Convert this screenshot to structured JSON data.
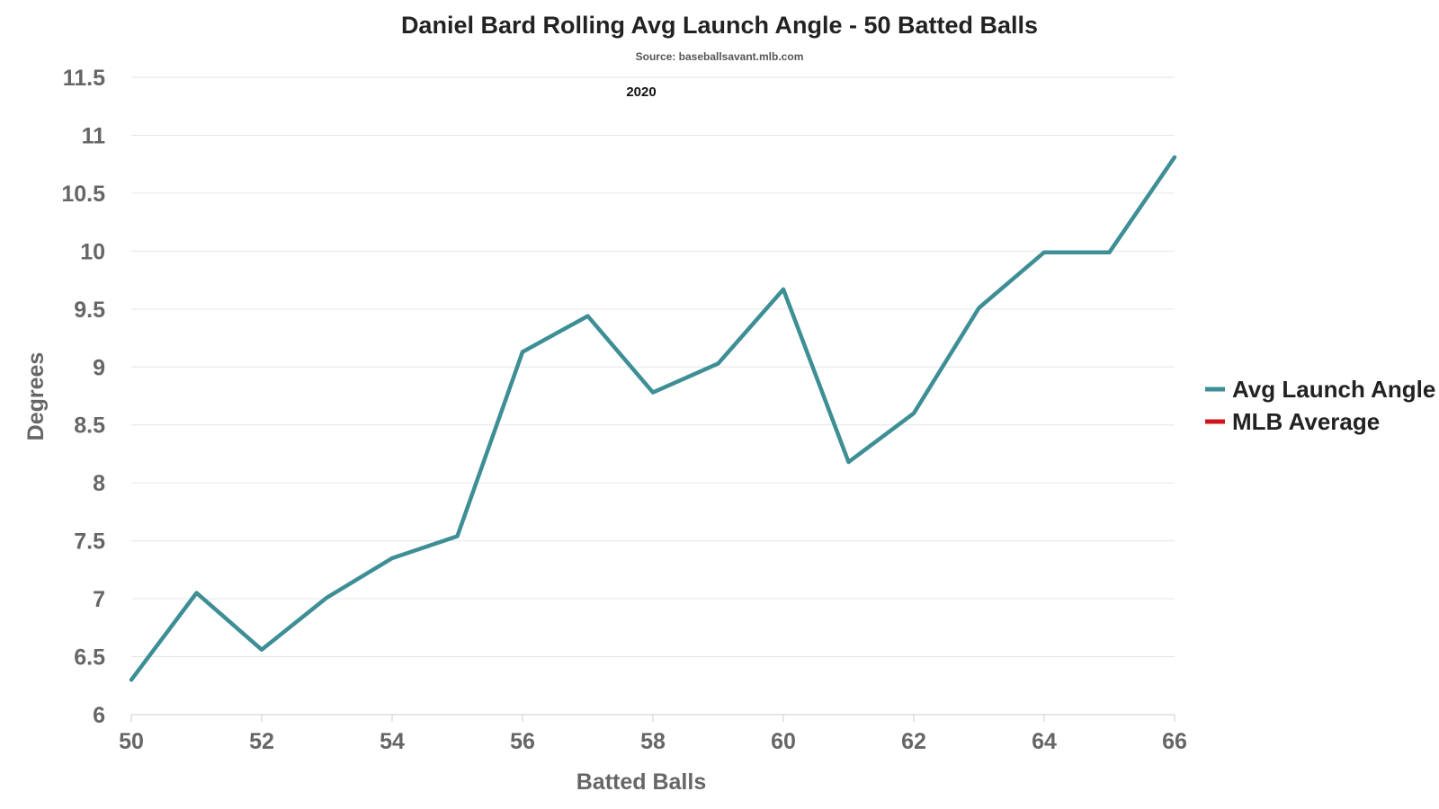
{
  "chart_data": {
    "type": "line",
    "title": "Daniel Bard Rolling Avg Launch Angle - 50 Batted Balls",
    "subtitle": "Source: baseballsavant.mlb.com",
    "annotation": "2020",
    "xlabel": "Batted Balls",
    "ylabel": "Degrees",
    "xlim": [
      50,
      66
    ],
    "ylim": [
      6,
      11.5
    ],
    "x_ticks": [
      "50",
      "52",
      "54",
      "56",
      "58",
      "60",
      "62",
      "64",
      "66"
    ],
    "y_ticks": [
      "6",
      "6.5",
      "7",
      "7.5",
      "8",
      "8.5",
      "9",
      "9.5",
      "10",
      "10.5",
      "11",
      "11.5"
    ],
    "grid": true,
    "legend_position": "right",
    "series": [
      {
        "name": "Avg Launch Angle",
        "color": "#3d8f95",
        "x": [
          50,
          51,
          52,
          53,
          54,
          55,
          56,
          57,
          58,
          59,
          60,
          61,
          62,
          63,
          64,
          65,
          66
        ],
        "y": [
          6.3,
          7.05,
          6.56,
          7.01,
          7.35,
          7.54,
          9.13,
          9.44,
          8.78,
          9.03,
          9.67,
          8.18,
          8.6,
          9.51,
          9.99,
          9.99,
          10.81
        ]
      },
      {
        "name": "MLB Average",
        "color": "#d0161b",
        "x": [],
        "y": []
      }
    ]
  }
}
